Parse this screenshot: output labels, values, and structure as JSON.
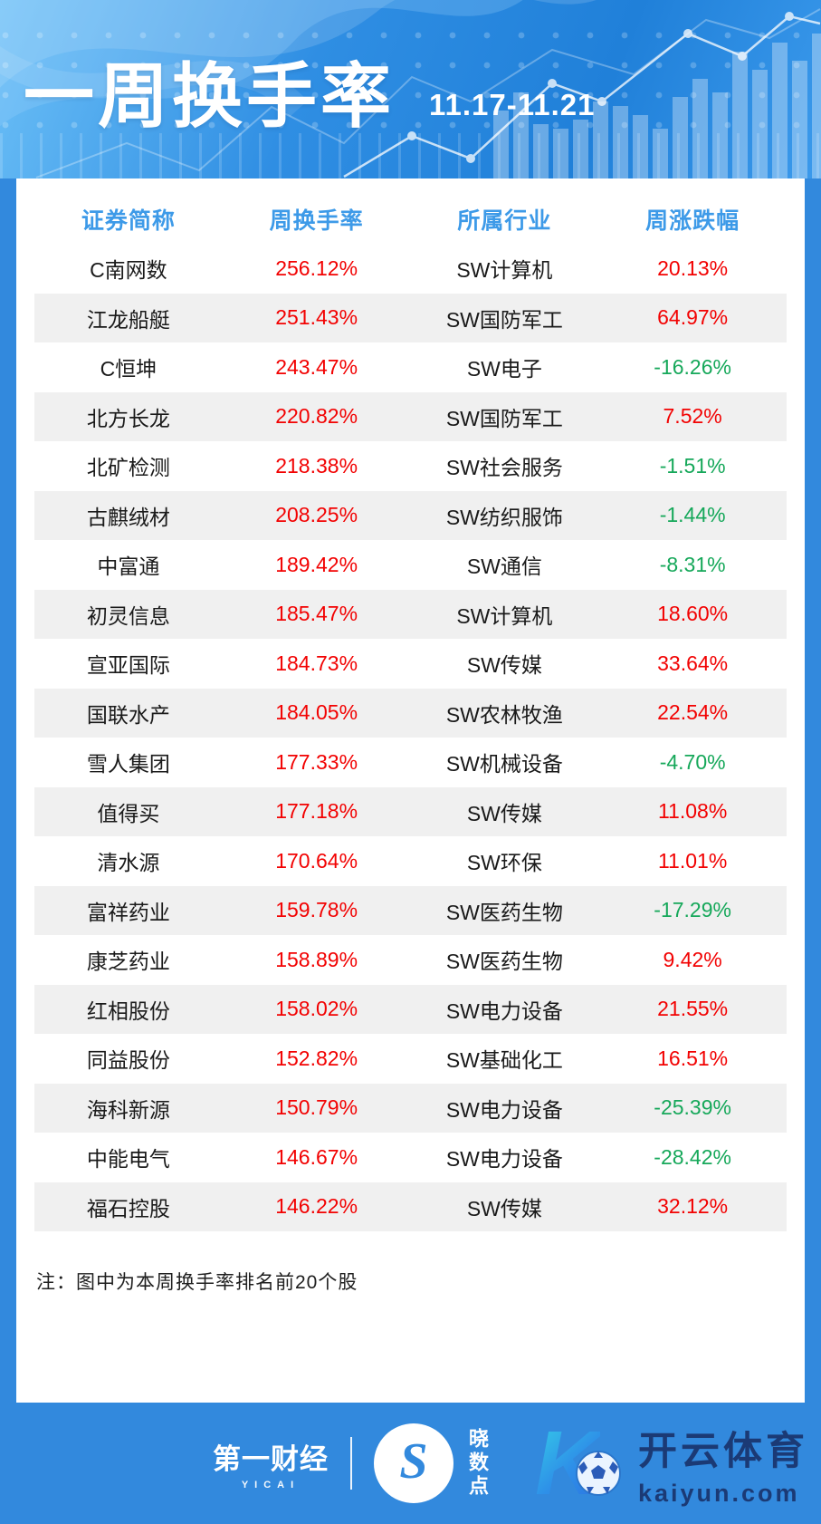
{
  "colors": {
    "up_red": "#f20202",
    "down_green": "#16a85a",
    "column_header_blue": "#3d9ae8",
    "page_blue": "#3289dd",
    "stripe_gray": "#f0f0f0",
    "footer_navy": "#1b3a75"
  },
  "header": {
    "title": "一周换手率",
    "date_range": "11.17-11.21"
  },
  "chart_data": {
    "type": "table",
    "title": "一周换手率",
    "subtitle": "11.17-11.21",
    "columns": [
      "证券简称",
      "周换手率",
      "所属行业",
      "周涨跌幅"
    ],
    "rows": [
      {
        "name": "C南网数",
        "turnover": "256.12%",
        "industry": "SW计算机",
        "change": "20.13%"
      },
      {
        "name": "江龙船艇",
        "turnover": "251.43%",
        "industry": "SW国防军工",
        "change": "64.97%"
      },
      {
        "name": "C恒坤",
        "turnover": "243.47%",
        "industry": "SW电子",
        "change": "-16.26%"
      },
      {
        "name": "北方长龙",
        "turnover": "220.82%",
        "industry": "SW国防军工",
        "change": "7.52%"
      },
      {
        "name": "北矿检测",
        "turnover": "218.38%",
        "industry": "SW社会服务",
        "change": "-1.51%"
      },
      {
        "name": "古麒绒材",
        "turnover": "208.25%",
        "industry": "SW纺织服饰",
        "change": "-1.44%"
      },
      {
        "name": "中富通",
        "turnover": "189.42%",
        "industry": "SW通信",
        "change": "-8.31%"
      },
      {
        "name": "初灵信息",
        "turnover": "185.47%",
        "industry": "SW计算机",
        "change": "18.60%"
      },
      {
        "name": "宣亚国际",
        "turnover": "184.73%",
        "industry": "SW传媒",
        "change": "33.64%"
      },
      {
        "name": "国联水产",
        "turnover": "184.05%",
        "industry": "SW农林牧渔",
        "change": "22.54%"
      },
      {
        "name": "雪人集团",
        "turnover": "177.33%",
        "industry": "SW机械设备",
        "change": "-4.70%"
      },
      {
        "name": "值得买",
        "turnover": "177.18%",
        "industry": "SW传媒",
        "change": "11.08%"
      },
      {
        "name": "清水源",
        "turnover": "170.64%",
        "industry": "SW环保",
        "change": "11.01%"
      },
      {
        "name": "富祥药业",
        "turnover": "159.78%",
        "industry": "SW医药生物",
        "change": "-17.29%"
      },
      {
        "name": "康芝药业",
        "turnover": "158.89%",
        "industry": "SW医药生物",
        "change": "9.42%"
      },
      {
        "name": "红相股份",
        "turnover": "158.02%",
        "industry": "SW电力设备",
        "change": "21.55%"
      },
      {
        "name": "同益股份",
        "turnover": "152.82%",
        "industry": "SW基础化工",
        "change": "16.51%"
      },
      {
        "name": "海科新源",
        "turnover": "150.79%",
        "industry": "SW电力设备",
        "change": "-25.39%"
      },
      {
        "name": "中能电气",
        "turnover": "146.67%",
        "industry": "SW电力设备",
        "change": "-28.42%"
      },
      {
        "name": "福石控股",
        "turnover": "146.22%",
        "industry": "SW传媒",
        "change": "32.12%"
      }
    ]
  },
  "note": "注：图中为本周换手率排名前20个股",
  "footer": {
    "yicai_label": "第一财经",
    "yicai_sub": "YICAI",
    "xiaoshudian_icon_letter": "S",
    "xiaoshudian_label": "晓数点",
    "kaiyun_icon_letter": "K",
    "kaiyun_name": "开云体育",
    "kaiyun_domain": "kaiyun.com"
  }
}
